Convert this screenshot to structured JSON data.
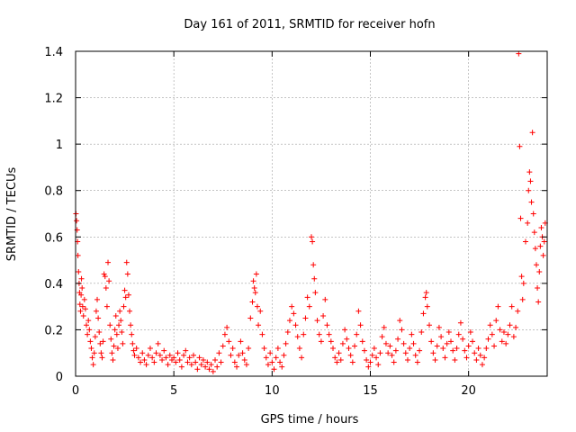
{
  "chart_data": {
    "type": "scatter",
    "title": "Day 161 of 2011, SRMTID for receiver hofn",
    "xlabel": "GPS time / hours",
    "ylabel": "SRMTID / TECUs",
    "xlim": [
      0,
      24
    ],
    "ylim": [
      0,
      1.4
    ],
    "xticks": [
      0,
      5,
      10,
      15,
      20
    ],
    "xtick_labels": [
      "0",
      "5",
      "10",
      "15",
      "20"
    ],
    "yticks": [
      0,
      0.2,
      0.4,
      0.6,
      0.8,
      1.0,
      1.2,
      1.4
    ],
    "ytick_labels": [
      "0",
      "0.2",
      "0.4",
      "0.6",
      "0.8",
      "1",
      "1.2",
      "1.4"
    ],
    "grid": true,
    "marker": "+",
    "color": "#ff0000",
    "series": [
      {
        "name": "SRMTID",
        "points": [
          [
            0.02,
            0.7
          ],
          [
            0.05,
            0.67
          ],
          [
            0.08,
            0.63
          ],
          [
            0.1,
            0.58
          ],
          [
            0.12,
            0.52
          ],
          [
            0.15,
            0.45
          ],
          [
            0.18,
            0.4
          ],
          [
            0.2,
            0.36
          ],
          [
            0.22,
            0.31
          ],
          [
            0.25,
            0.28
          ],
          [
            0.28,
            0.35
          ],
          [
            0.3,
            0.42
          ],
          [
            0.33,
            0.38
          ],
          [
            0.36,
            0.3
          ],
          [
            0.4,
            0.26
          ],
          [
            0.45,
            0.33
          ],
          [
            0.5,
            0.29
          ],
          [
            0.55,
            0.22
          ],
          [
            0.6,
            0.18
          ],
          [
            0.65,
            0.24
          ],
          [
            0.7,
            0.2
          ],
          [
            0.75,
            0.15
          ],
          [
            0.8,
            0.12
          ],
          [
            0.85,
            0.08
          ],
          [
            0.9,
            0.05
          ],
          [
            0.95,
            0.1
          ],
          [
            1.0,
            0.17
          ],
          [
            1.05,
            0.28
          ],
          [
            1.1,
            0.33
          ],
          [
            1.15,
            0.25
          ],
          [
            1.2,
            0.19
          ],
          [
            1.25,
            0.14
          ],
          [
            1.3,
            0.1
          ],
          [
            1.35,
            0.08
          ],
          [
            1.4,
            0.15
          ],
          [
            1.45,
            0.44
          ],
          [
            1.5,
            0.43
          ],
          [
            1.55,
            0.38
          ],
          [
            1.6,
            0.3
          ],
          [
            1.65,
            0.49
          ],
          [
            1.7,
            0.41
          ],
          [
            1.75,
            0.22
          ],
          [
            1.8,
            0.16
          ],
          [
            1.85,
            0.1
          ],
          [
            1.9,
            0.07
          ],
          [
            1.95,
            0.13
          ],
          [
            2.0,
            0.2
          ],
          [
            2.05,
            0.26
          ],
          [
            2.1,
            0.18
          ],
          [
            2.15,
            0.12
          ],
          [
            2.2,
            0.22
          ],
          [
            2.25,
            0.28
          ],
          [
            2.3,
            0.24
          ],
          [
            2.35,
            0.19
          ],
          [
            2.4,
            0.14
          ],
          [
            2.45,
            0.3
          ],
          [
            2.5,
            0.37
          ],
          [
            2.55,
            0.34
          ],
          [
            2.6,
            0.49
          ],
          [
            2.65,
            0.44
          ],
          [
            2.7,
            0.35
          ],
          [
            2.75,
            0.28
          ],
          [
            2.8,
            0.22
          ],
          [
            2.85,
            0.18
          ],
          [
            2.9,
            0.14
          ],
          [
            2.95,
            0.11
          ],
          [
            3.0,
            0.09
          ],
          [
            3.1,
            0.12
          ],
          [
            3.2,
            0.08
          ],
          [
            3.3,
            0.06
          ],
          [
            3.4,
            0.1
          ],
          [
            3.5,
            0.07
          ],
          [
            3.6,
            0.05
          ],
          [
            3.7,
            0.09
          ],
          [
            3.8,
            0.12
          ],
          [
            3.9,
            0.08
          ],
          [
            4.0,
            0.06
          ],
          [
            4.1,
            0.1
          ],
          [
            4.2,
            0.14
          ],
          [
            4.3,
            0.09
          ],
          [
            4.4,
            0.07
          ],
          [
            4.5,
            0.11
          ],
          [
            4.6,
            0.08
          ],
          [
            4.7,
            0.05
          ],
          [
            4.8,
            0.09
          ],
          [
            4.9,
            0.07
          ],
          [
            5.0,
            0.08
          ],
          [
            5.1,
            0.06
          ],
          [
            5.2,
            0.1
          ],
          [
            5.3,
            0.07
          ],
          [
            5.4,
            0.04
          ],
          [
            5.5,
            0.09
          ],
          [
            5.6,
            0.11
          ],
          [
            5.7,
            0.06
          ],
          [
            5.8,
            0.08
          ],
          [
            5.9,
            0.05
          ],
          [
            6.0,
            0.09
          ],
          [
            6.1,
            0.06
          ],
          [
            6.2,
            0.03
          ],
          [
            6.3,
            0.08
          ],
          [
            6.4,
            0.05
          ],
          [
            6.5,
            0.07
          ],
          [
            6.6,
            0.04
          ],
          [
            6.7,
            0.06
          ],
          [
            6.8,
            0.03
          ],
          [
            6.9,
            0.05
          ],
          [
            7.0,
            0.02
          ],
          [
            7.1,
            0.07
          ],
          [
            7.2,
            0.04
          ],
          [
            7.3,
            0.1
          ],
          [
            7.4,
            0.06
          ],
          [
            7.5,
            0.13
          ],
          [
            7.6,
            0.18
          ],
          [
            7.7,
            0.21
          ],
          [
            7.8,
            0.15
          ],
          [
            7.9,
            0.09
          ],
          [
            8.0,
            0.12
          ],
          [
            8.1,
            0.06
          ],
          [
            8.2,
            0.04
          ],
          [
            8.3,
            0.09
          ],
          [
            8.4,
            0.15
          ],
          [
            8.5,
            0.1
          ],
          [
            8.6,
            0.07
          ],
          [
            8.7,
            0.05
          ],
          [
            8.8,
            0.12
          ],
          [
            8.9,
            0.25
          ],
          [
            9.0,
            0.32
          ],
          [
            9.05,
            0.41
          ],
          [
            9.1,
            0.38
          ],
          [
            9.15,
            0.36
          ],
          [
            9.2,
            0.44
          ],
          [
            9.25,
            0.3
          ],
          [
            9.3,
            0.22
          ],
          [
            9.4,
            0.28
          ],
          [
            9.5,
            0.18
          ],
          [
            9.6,
            0.12
          ],
          [
            9.7,
            0.08
          ],
          [
            9.8,
            0.05
          ],
          [
            9.9,
            0.1
          ],
          [
            10.0,
            0.06
          ],
          [
            10.1,
            0.03
          ],
          [
            10.2,
            0.08
          ],
          [
            10.3,
            0.12
          ],
          [
            10.4,
            0.06
          ],
          [
            10.5,
            0.04
          ],
          [
            10.6,
            0.09
          ],
          [
            10.7,
            0.14
          ],
          [
            10.8,
            0.19
          ],
          [
            10.9,
            0.24
          ],
          [
            11.0,
            0.3
          ],
          [
            11.1,
            0.27
          ],
          [
            11.2,
            0.22
          ],
          [
            11.3,
            0.17
          ],
          [
            11.4,
            0.12
          ],
          [
            11.5,
            0.08
          ],
          [
            11.6,
            0.18
          ],
          [
            11.7,
            0.25
          ],
          [
            11.8,
            0.34
          ],
          [
            11.9,
            0.3
          ],
          [
            12.0,
            0.6
          ],
          [
            12.05,
            0.58
          ],
          [
            12.1,
            0.48
          ],
          [
            12.15,
            0.42
          ],
          [
            12.2,
            0.36
          ],
          [
            12.3,
            0.24
          ],
          [
            12.4,
            0.18
          ],
          [
            12.5,
            0.15
          ],
          [
            12.6,
            0.26
          ],
          [
            12.7,
            0.33
          ],
          [
            12.8,
            0.22
          ],
          [
            12.9,
            0.18
          ],
          [
            13.0,
            0.15
          ],
          [
            13.1,
            0.12
          ],
          [
            13.2,
            0.08
          ],
          [
            13.3,
            0.06
          ],
          [
            13.4,
            0.1
          ],
          [
            13.5,
            0.07
          ],
          [
            13.6,
            0.14
          ],
          [
            13.7,
            0.2
          ],
          [
            13.8,
            0.16
          ],
          [
            13.9,
            0.12
          ],
          [
            14.0,
            0.09
          ],
          [
            14.1,
            0.06
          ],
          [
            14.2,
            0.13
          ],
          [
            14.3,
            0.18
          ],
          [
            14.4,
            0.28
          ],
          [
            14.5,
            0.22
          ],
          [
            14.6,
            0.15
          ],
          [
            14.7,
            0.11
          ],
          [
            14.8,
            0.07
          ],
          [
            14.9,
            0.04
          ],
          [
            15.0,
            0.06
          ],
          [
            15.1,
            0.09
          ],
          [
            15.2,
            0.12
          ],
          [
            15.3,
            0.08
          ],
          [
            15.4,
            0.05
          ],
          [
            15.5,
            0.1
          ],
          [
            15.6,
            0.17
          ],
          [
            15.7,
            0.21
          ],
          [
            15.8,
            0.14
          ],
          [
            15.9,
            0.1
          ],
          [
            16.0,
            0.13
          ],
          [
            16.1,
            0.09
          ],
          [
            16.2,
            0.06
          ],
          [
            16.3,
            0.11
          ],
          [
            16.4,
            0.16
          ],
          [
            16.5,
            0.24
          ],
          [
            16.6,
            0.2
          ],
          [
            16.7,
            0.14
          ],
          [
            16.8,
            0.1
          ],
          [
            16.9,
            0.07
          ],
          [
            17.0,
            0.12
          ],
          [
            17.1,
            0.18
          ],
          [
            17.2,
            0.14
          ],
          [
            17.3,
            0.09
          ],
          [
            17.4,
            0.06
          ],
          [
            17.5,
            0.11
          ],
          [
            17.6,
            0.19
          ],
          [
            17.7,
            0.27
          ],
          [
            17.8,
            0.34
          ],
          [
            17.85,
            0.36
          ],
          [
            17.9,
            0.3
          ],
          [
            18.0,
            0.22
          ],
          [
            18.1,
            0.15
          ],
          [
            18.2,
            0.1
          ],
          [
            18.3,
            0.07
          ],
          [
            18.4,
            0.13
          ],
          [
            18.5,
            0.21
          ],
          [
            18.6,
            0.17
          ],
          [
            18.7,
            0.12
          ],
          [
            18.8,
            0.08
          ],
          [
            18.9,
            0.14
          ],
          [
            19.0,
            0.19
          ],
          [
            19.1,
            0.15
          ],
          [
            19.2,
            0.11
          ],
          [
            19.3,
            0.07
          ],
          [
            19.4,
            0.12
          ],
          [
            19.5,
            0.18
          ],
          [
            19.6,
            0.23
          ],
          [
            19.7,
            0.16
          ],
          [
            19.8,
            0.11
          ],
          [
            19.9,
            0.08
          ],
          [
            20.0,
            0.13
          ],
          [
            20.1,
            0.19
          ],
          [
            20.2,
            0.15
          ],
          [
            20.3,
            0.1
          ],
          [
            20.4,
            0.07
          ],
          [
            20.5,
            0.12
          ],
          [
            20.6,
            0.09
          ],
          [
            20.7,
            0.05
          ],
          [
            20.8,
            0.08
          ],
          [
            20.9,
            0.12
          ],
          [
            21.0,
            0.16
          ],
          [
            21.1,
            0.22
          ],
          [
            21.2,
            0.18
          ],
          [
            21.3,
            0.13
          ],
          [
            21.4,
            0.24
          ],
          [
            21.5,
            0.3
          ],
          [
            21.6,
            0.2
          ],
          [
            21.7,
            0.15
          ],
          [
            21.8,
            0.19
          ],
          [
            21.9,
            0.14
          ],
          [
            22.0,
            0.18
          ],
          [
            22.1,
            0.22
          ],
          [
            22.2,
            0.3
          ],
          [
            22.3,
            0.17
          ],
          [
            22.4,
            0.21
          ],
          [
            22.5,
            0.28
          ],
          [
            22.55,
            1.39
          ],
          [
            22.6,
            0.99
          ],
          [
            22.65,
            0.68
          ],
          [
            22.7,
            0.43
          ],
          [
            22.75,
            0.33
          ],
          [
            22.8,
            0.4
          ],
          [
            22.9,
            0.58
          ],
          [
            23.0,
            0.66
          ],
          [
            23.05,
            0.8
          ],
          [
            23.1,
            0.88
          ],
          [
            23.15,
            0.84
          ],
          [
            23.2,
            0.75
          ],
          [
            23.25,
            1.05
          ],
          [
            23.3,
            0.7
          ],
          [
            23.35,
            0.62
          ],
          [
            23.4,
            0.55
          ],
          [
            23.45,
            0.48
          ],
          [
            23.5,
            0.38
          ],
          [
            23.55,
            0.32
          ],
          [
            23.6,
            0.45
          ],
          [
            23.65,
            0.56
          ],
          [
            23.7,
            0.64
          ],
          [
            23.75,
            0.6
          ],
          [
            23.8,
            0.52
          ],
          [
            23.85,
            0.58
          ],
          [
            23.9,
            0.66
          ]
        ]
      }
    ]
  }
}
